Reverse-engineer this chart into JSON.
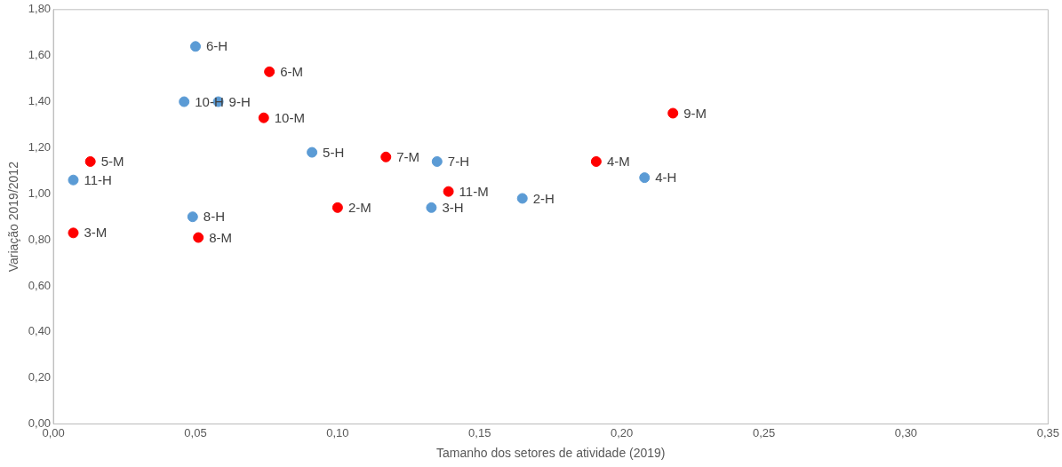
{
  "chart_data": {
    "type": "scatter",
    "xlabel": "Tamanho dos setores de atividade (2019)",
    "ylabel": "Variação 2019/2012",
    "series": [
      {
        "color": "#5b9bd5",
        "x": [
          0.05,
          0.046,
          0.058,
          0.091,
          0.135,
          0.007,
          0.208,
          0.165,
          0.133,
          0.049
        ],
        "values": [
          1.64,
          1.4,
          1.4,
          1.18,
          1.14,
          1.06,
          1.07,
          0.98,
          0.94,
          0.9
        ]
      },
      {
        "color": "#ff0000",
        "x": [
          0.076,
          0.074,
          0.218,
          0.013,
          0.117,
          0.191,
          0.139,
          0.1,
          0.007,
          0.051
        ],
        "values": [
          1.53,
          1.33,
          1.35,
          1.14,
          1.16,
          1.14,
          1.01,
          0.94,
          0.83,
          0.81
        ]
      }
    ],
    "annotations": [
      {
        "text": "6-H",
        "x": 0.05,
        "y": 1.64
      },
      {
        "text": "10-H",
        "x": 0.046,
        "y": 1.4
      },
      {
        "text": "9-H",
        "x": 0.058,
        "y": 1.4
      },
      {
        "text": "5-H",
        "x": 0.091,
        "y": 1.18
      },
      {
        "text": "7-H",
        "x": 0.135,
        "y": 1.14
      },
      {
        "text": "11-H",
        "x": 0.007,
        "y": 1.06
      },
      {
        "text": "4-H",
        "x": 0.208,
        "y": 1.07
      },
      {
        "text": "2-H",
        "x": 0.165,
        "y": 0.98
      },
      {
        "text": "3-H",
        "x": 0.133,
        "y": 0.94
      },
      {
        "text": "8-H",
        "x": 0.049,
        "y": 0.9
      },
      {
        "text": "6-M",
        "x": 0.076,
        "y": 1.53
      },
      {
        "text": "10-M",
        "x": 0.074,
        "y": 1.33
      },
      {
        "text": "9-M",
        "x": 0.218,
        "y": 1.35
      },
      {
        "text": "5-M",
        "x": 0.013,
        "y": 1.14
      },
      {
        "text": "7-M",
        "x": 0.117,
        "y": 1.16
      },
      {
        "text": "4-M",
        "x": 0.191,
        "y": 1.14
      },
      {
        "text": "11-M",
        "x": 0.139,
        "y": 1.01
      },
      {
        "text": "2-M",
        "x": 0.1,
        "y": 0.94
      },
      {
        "text": "3-M",
        "x": 0.007,
        "y": 0.83
      },
      {
        "text": "8-M",
        "x": 0.051,
        "y": 0.81
      }
    ],
    "xlim": [
      0,
      0.35
    ],
    "xticks": [
      {
        "value": 0,
        "label": "0,00"
      },
      {
        "value": 0.05,
        "label": "0,05"
      },
      {
        "value": 0.1,
        "label": "0,10"
      },
      {
        "value": 0.15,
        "label": "0,15"
      },
      {
        "value": 0.2,
        "label": "0,20"
      },
      {
        "value": 0.25,
        "label": "0,25"
      },
      {
        "value": 0.3,
        "label": "0,30"
      },
      {
        "value": 0.35,
        "label": "0,35"
      }
    ],
    "ylim": [
      0,
      1.8
    ],
    "yticks": [
      {
        "value": 0,
        "label": "0,00"
      },
      {
        "value": 0.2,
        "label": "0,20"
      },
      {
        "value": 0.4,
        "label": "0,40"
      },
      {
        "value": 0.6,
        "label": "0,60"
      },
      {
        "value": 0.8,
        "label": "0,80"
      },
      {
        "value": 1.0,
        "label": "1,00"
      },
      {
        "value": 1.2,
        "label": "1,20"
      },
      {
        "value": 1.4,
        "label": "1,40"
      },
      {
        "value": 1.6,
        "label": "1,60"
      },
      {
        "value": 1.8,
        "label": "1,80"
      }
    ],
    "marker": "circle",
    "grid": false,
    "legend": false
  }
}
